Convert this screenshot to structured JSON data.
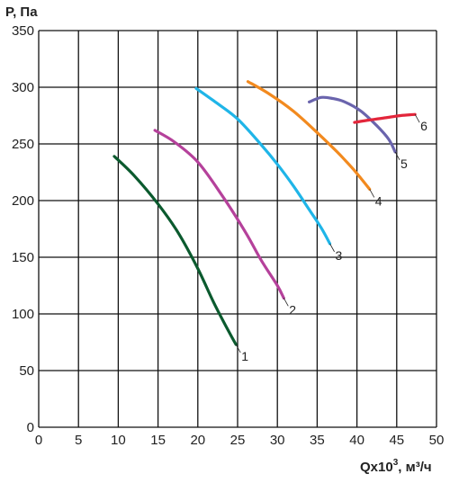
{
  "chart_data": {
    "type": "line",
    "ylabel": "P, Па",
    "xlabel": "Qx10",
    "xlabel_sup": "3",
    "xlabel_unit": ", м³/ч",
    "xlim": [
      0,
      50
    ],
    "ylim": [
      0,
      350
    ],
    "xticks": [
      "0",
      "5",
      "10",
      "15",
      "20",
      "25",
      "30",
      "35",
      "40",
      "45",
      "50"
    ],
    "yticks": [
      "0",
      "50",
      "100",
      "150",
      "200",
      "250",
      "300",
      "350"
    ],
    "grid": true,
    "series": [
      {
        "name": "1",
        "color": "#0b5a2e",
        "points": [
          [
            9.5,
            239
          ],
          [
            12,
            222
          ],
          [
            15,
            197
          ],
          [
            17.5,
            172
          ],
          [
            20,
            140
          ],
          [
            22,
            110
          ],
          [
            24,
            83
          ],
          [
            24.8,
            73
          ]
        ]
      },
      {
        "name": "2",
        "color": "#b5419b",
        "points": [
          [
            14.6,
            262
          ],
          [
            17,
            252
          ],
          [
            20,
            234
          ],
          [
            23,
            205
          ],
          [
            26,
            172
          ],
          [
            28,
            147
          ],
          [
            30,
            125
          ],
          [
            30.8,
            114
          ]
        ]
      },
      {
        "name": "3",
        "color": "#1fb5e8",
        "points": [
          [
            19.8,
            299
          ],
          [
            22,
            288
          ],
          [
            25,
            272
          ],
          [
            28,
            249
          ],
          [
            30,
            232
          ],
          [
            32,
            213
          ],
          [
            34,
            192
          ],
          [
            35.5,
            176
          ],
          [
            36.6,
            162
          ]
        ]
      },
      {
        "name": "4",
        "color": "#f28a1f",
        "points": [
          [
            26.3,
            305
          ],
          [
            29,
            294
          ],
          [
            32,
            279
          ],
          [
            35,
            260
          ],
          [
            37.5,
            243
          ],
          [
            39.5,
            228
          ],
          [
            41.6,
            210
          ]
        ]
      },
      {
        "name": "5",
        "color": "#6a64ad",
        "points": [
          [
            34,
            287
          ],
          [
            35.5,
            291
          ],
          [
            37,
            290
          ],
          [
            38.5,
            287
          ],
          [
            40.5,
            279
          ],
          [
            42.5,
            266
          ],
          [
            44,
            254
          ],
          [
            44.8,
            243
          ]
        ]
      },
      {
        "name": "6",
        "color": "#e3263b",
        "points": [
          [
            39.7,
            269
          ],
          [
            41.5,
            271
          ],
          [
            43.5,
            273
          ],
          [
            45.5,
            275
          ],
          [
            47.3,
            276
          ]
        ]
      }
    ]
  }
}
